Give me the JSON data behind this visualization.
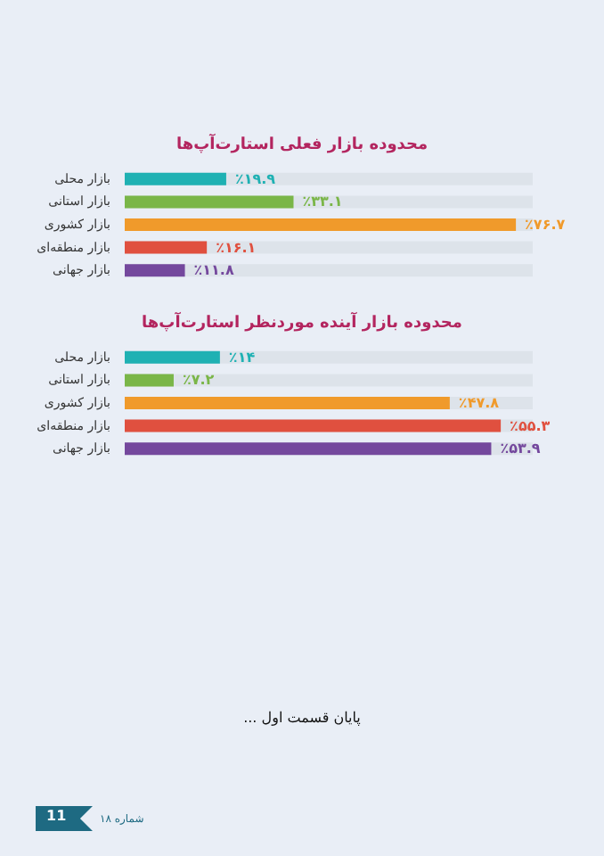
{
  "chart_data": [
    {
      "type": "bar",
      "orientation": "horizontal",
      "title": "محدوده بازار فعلی استارت‌آپ‌ها",
      "categories": [
        "بازار محلی",
        "بازار استانی",
        "بازار کشوری",
        "بازار منطقه‌ای",
        "بازار جهانی"
      ],
      "values": [
        19.9,
        33.1,
        76.7,
        16.1,
        11.8
      ],
      "colors": [
        "#1fb1b3",
        "#7ab648",
        "#f09a2b",
        "#e0503f",
        "#74489d"
      ],
      "value_labels": [
        "٪۱۹.۹",
        "٪۳۳.۱",
        "٪۷۶.۷",
        "٪۱۶.۱",
        "٪۱۱.۸"
      ],
      "tick_labels": "y"
    },
    {
      "type": "bar",
      "orientation": "horizontal",
      "title": "محدوده بازار آینده موردنظر استارت‌آپ‌ها",
      "categories": [
        "بازار محلی",
        "بازار استانی",
        "بازار کشوری",
        "بازار منطقه‌ای",
        "بازار جهانی"
      ],
      "values": [
        14,
        7.2,
        47.8,
        55.3,
        53.9
      ],
      "colors": [
        "#1fb1b3",
        "#7ab648",
        "#f09a2b",
        "#e0503f",
        "#74489d"
      ],
      "value_labels": [
        "٪۱۴",
        "٪۷.۲",
        "٪۴۷.۸",
        "٪۵۵.۳",
        "٪۵۳.۹"
      ],
      "tick_labels": "y",
      "annotations": [
        "پایان قسمت اول ...",
        "شماره ۱۸",
        "11"
      ]
    }
  ]
}
